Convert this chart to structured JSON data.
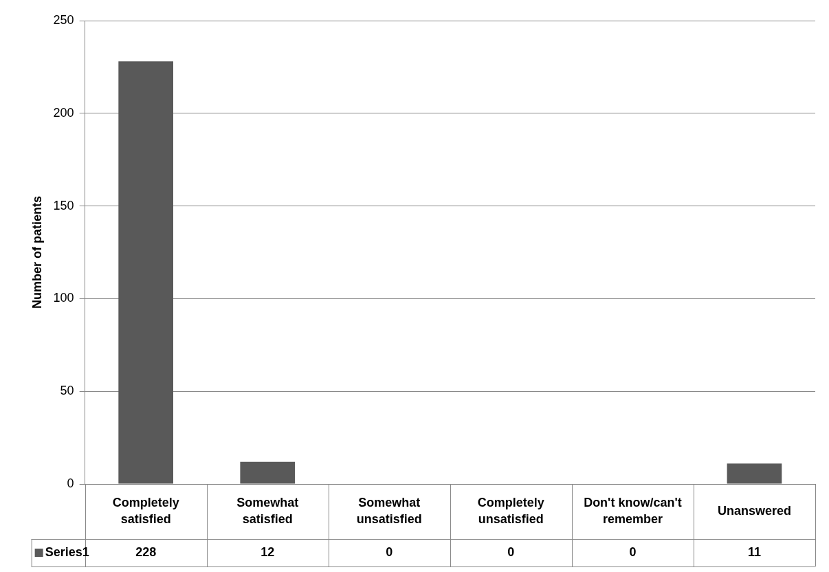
{
  "chart_data": {
    "type": "bar",
    "ylabel": "Number of patients",
    "categories": [
      "Completely satisfied",
      "Somewhat satisfied",
      "Somewhat unsatisfied",
      "Completely unsatisfied",
      "Don't know/can't remember",
      "Unanswered"
    ],
    "series": [
      {
        "name": "Series1",
        "color": "#595959",
        "values": [
          228,
          12,
          0,
          0,
          0,
          11
        ]
      }
    ],
    "ylim": [
      0,
      250
    ],
    "yticks": [
      0,
      50,
      100,
      150,
      200,
      250
    ],
    "grid": "y",
    "legend": "bottom",
    "data_labels": true
  }
}
